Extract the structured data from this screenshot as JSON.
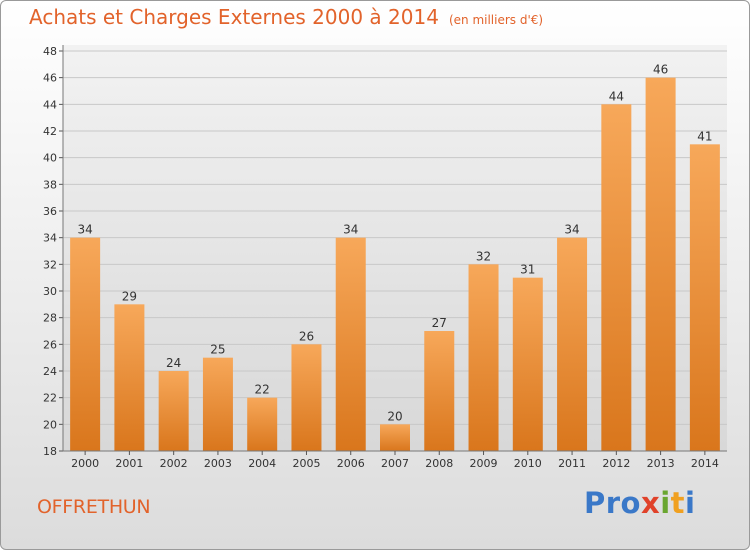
{
  "header": {
    "title": "Achats et Charges Externes 2000 à 2014",
    "unit": "(en milliers d'€)"
  },
  "footer": {
    "commune": "OFFRETHUN",
    "logo": [
      "Pro",
      "x",
      "i",
      "t",
      "i"
    ]
  },
  "colors": {
    "title": "#e2632b",
    "bar_light": "#f7a85a",
    "bar_dark": "#d9761c",
    "grid": "#c8c8c8"
  },
  "chart_data": {
    "type": "bar",
    "title": "Achats et Charges Externes 2000 à 2014",
    "subtitle": "(en milliers d'€)",
    "categories": [
      "2000",
      "2001",
      "2002",
      "2003",
      "2004",
      "2005",
      "2006",
      "2007",
      "2008",
      "2009",
      "2010",
      "2011",
      "2012",
      "2013",
      "2014"
    ],
    "values": [
      34,
      29,
      24,
      25,
      22,
      26,
      34,
      20,
      27,
      32,
      31,
      34,
      44,
      46,
      41
    ],
    "ylim": [
      18,
      48
    ],
    "yticks": [
      18,
      20,
      22,
      24,
      26,
      28,
      30,
      32,
      34,
      36,
      38,
      40,
      42,
      44,
      46,
      48
    ],
    "grid": true,
    "data_labels": true
  }
}
